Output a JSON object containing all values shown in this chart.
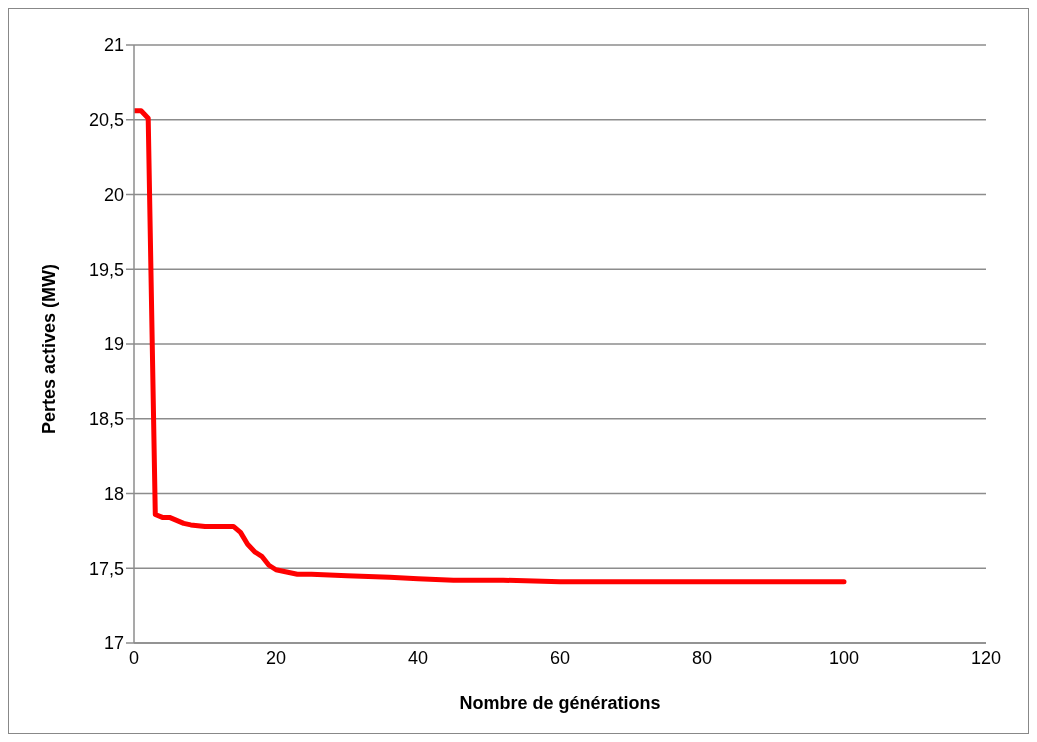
{
  "chart_data": {
    "type": "line",
    "xlabel": "Nombre de générations",
    "ylabel": "Pertes actives (MW)",
    "x": [
      0,
      1,
      2,
      3,
      4,
      5,
      6,
      7,
      8,
      10,
      14,
      15,
      16,
      17,
      18,
      19,
      20,
      21,
      23,
      25,
      30,
      36,
      40,
      45,
      52,
      60,
      75,
      100
    ],
    "series": [
      {
        "color": "#ff0000",
        "values": [
          20.56,
          20.56,
          20.51,
          17.86,
          17.84,
          17.84,
          17.82,
          17.8,
          17.79,
          17.78,
          17.78,
          17.74,
          17.66,
          17.61,
          17.58,
          17.52,
          17.49,
          17.48,
          17.46,
          17.46,
          17.45,
          17.44,
          17.43,
          17.42,
          17.42,
          17.41,
          17.41,
          17.41
        ]
      }
    ],
    "xlim": [
      0,
      120
    ],
    "xticks": [
      0,
      20,
      40,
      60,
      80,
      100,
      120
    ],
    "ylim": [
      17,
      21
    ],
    "yticks": [
      17,
      {
        "value": 17.5,
        "label": "17,5"
      },
      18,
      {
        "value": 18.5,
        "label": "18,5"
      },
      19,
      {
        "value": 19.5,
        "label": "19,5"
      },
      20,
      {
        "value": 20.5,
        "label": "20,5"
      },
      21
    ],
    "grid": "y",
    "legend": false,
    "marker": "none",
    "line_style": "solid"
  }
}
